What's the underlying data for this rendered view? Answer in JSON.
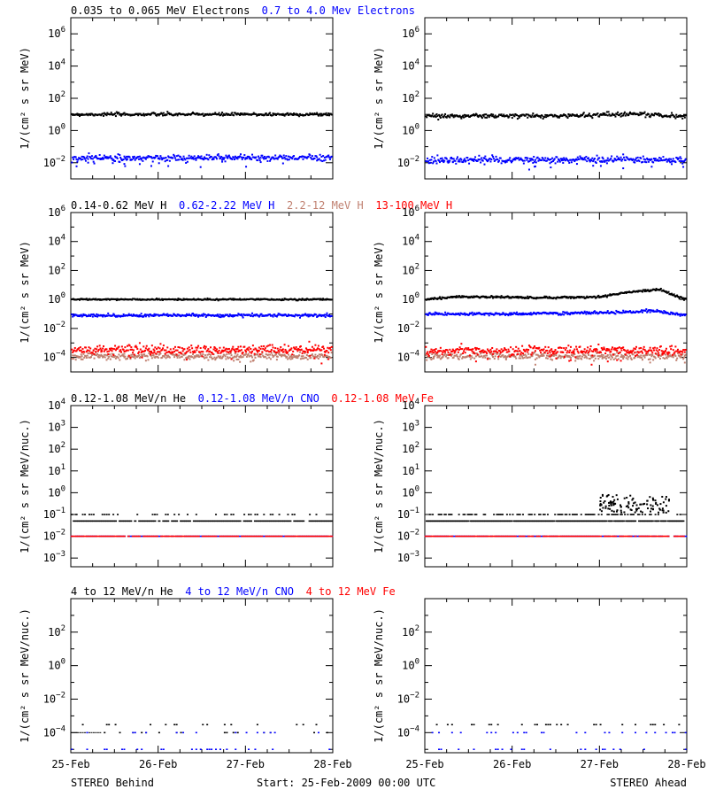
{
  "footer": {
    "left": "STEREO Behind",
    "center": "Start: 25-Feb-2009 00:00 UTC",
    "right": "STEREO Ahead"
  },
  "x_axis": {
    "ticks": [
      "25-Feb",
      "26-Feb",
      "27-Feb",
      "28-Feb"
    ],
    "range_days": [
      0,
      3
    ]
  },
  "colors": {
    "black": "#000000",
    "blue": "#0000ff",
    "brown": "#c08070",
    "red": "#ff0000"
  },
  "rows": [
    {
      "legend": [
        {
          "text": "0.035 to 0.065 MeV Electrons",
          "color": "black"
        },
        {
          "text": "0.7 to 4.0 Mev Electrons",
          "color": "blue"
        }
      ],
      "ylabel": "1/(cm² s sr MeV)",
      "ylim_log10": [
        -3,
        7
      ],
      "tick_exps": [
        -2,
        0,
        2,
        4,
        6
      ],
      "minor": true
    },
    {
      "legend": [
        {
          "text": "0.14-0.62 MeV H",
          "color": "black"
        },
        {
          "text": "0.62-2.22 MeV H",
          "color": "blue"
        },
        {
          "text": "2.2-12 MeV H",
          "color": "brown"
        },
        {
          "text": "13-100 MeV H",
          "color": "red"
        }
      ],
      "ylabel": "1/(cm² s sr MeV)",
      "ylim_log10": [
        -5,
        6
      ],
      "tick_exps": [
        -4,
        -2,
        0,
        2,
        4,
        6
      ],
      "minor": true
    },
    {
      "legend": [
        {
          "text": "0.12-1.08 MeV/n He",
          "color": "black"
        },
        {
          "text": "0.12-1.08 MeV/n CNO",
          "color": "blue"
        },
        {
          "text": "0.12-1.08 MeV Fe",
          "color": "red"
        }
      ],
      "ylabel": "1/(cm² s sr MeV/nuc.)",
      "ylim_log10": [
        -3.4,
        4
      ],
      "tick_exps": [
        -3,
        -2,
        -1,
        0,
        1,
        2,
        3,
        4
      ],
      "minor": false
    },
    {
      "legend": [
        {
          "text": "4 to 12 MeV/n He",
          "color": "black"
        },
        {
          "text": "4 to 12 MeV/n CNO",
          "color": "blue"
        },
        {
          "text": "4 to 12 MeV Fe",
          "color": "red"
        }
      ],
      "ylabel": "1/(cm² s sr MeV/nuc.)",
      "ylim_log10": [
        -5.2,
        4
      ],
      "tick_exps": [
        -4,
        -2,
        0,
        2
      ],
      "minor": true
    }
  ],
  "chart_data": [
    {
      "type": "scatter",
      "panel": "electrons-behind",
      "ylog": true,
      "ylim": [
        0.001,
        10000000
      ],
      "x_unit": "days since 25-Feb-2009",
      "series": [
        {
          "name": "0.035 to 0.065 MeV Electrons",
          "color": "black",
          "profile": [
            [
              0,
              10
            ],
            [
              1,
              10
            ],
            [
              2,
              10
            ],
            [
              3,
              10
            ]
          ],
          "scatter": 0.05
        },
        {
          "name": "0.7 to 4.0 Mev Electrons",
          "color": "blue",
          "profile": [
            [
              0,
              0.02
            ],
            [
              1,
              0.02
            ],
            [
              2,
              0.02
            ],
            [
              3,
              0.02
            ]
          ],
          "scatter": 0.1
        }
      ]
    },
    {
      "type": "scatter",
      "panel": "electrons-ahead",
      "ylog": true,
      "ylim": [
        0.001,
        10000000
      ],
      "x_unit": "days since 25-Feb-2009",
      "series": [
        {
          "name": "0.035 to 0.065 MeV Electrons",
          "color": "black",
          "profile": [
            [
              0,
              8
            ],
            [
              1.5,
              8
            ],
            [
              2.4,
              11
            ],
            [
              3,
              7
            ]
          ],
          "scatter": 0.07
        },
        {
          "name": "0.7 to 4.0 Mev Electrons",
          "color": "blue",
          "profile": [
            [
              0,
              0.015
            ],
            [
              1,
              0.015
            ],
            [
              2,
              0.015
            ],
            [
              3,
              0.015
            ]
          ],
          "scatter": 0.1
        }
      ]
    },
    {
      "type": "scatter",
      "panel": "protons-behind",
      "ylog": true,
      "ylim": [
        1e-05,
        1000000
      ],
      "x_unit": "days since 25-Feb-2009",
      "series": [
        {
          "name": "0.14-0.62 MeV H",
          "color": "black",
          "profile": [
            [
              0,
              1
            ],
            [
              1,
              1
            ],
            [
              2,
              1
            ],
            [
              3,
              1
            ]
          ],
          "scatter": 0.025
        },
        {
          "name": "0.62-2.22 MeV H",
          "color": "blue",
          "profile": [
            [
              0,
              0.08
            ],
            [
              1,
              0.08
            ],
            [
              2,
              0.08
            ],
            [
              3,
              0.08
            ]
          ],
          "scatter": 0.05
        },
        {
          "name": "2.2-12 MeV H",
          "color": "brown",
          "profile": [
            [
              0,
              0.00012
            ],
            [
              3,
              0.00012
            ]
          ],
          "scatter": 0.12
        },
        {
          "name": "13-100 MeV H",
          "color": "red",
          "profile": [
            [
              0,
              0.00035
            ],
            [
              3,
              0.00035
            ]
          ],
          "scatter": 0.16
        }
      ]
    },
    {
      "type": "scatter",
      "panel": "protons-ahead",
      "ylog": true,
      "ylim": [
        1e-05,
        1000000
      ],
      "x_unit": "days since 25-Feb-2009",
      "series": [
        {
          "name": "0.14-0.62 MeV H",
          "color": "black",
          "profile": [
            [
              0,
              1
            ],
            [
              0.4,
              1.6
            ],
            [
              1.4,
              1.3
            ],
            [
              2.0,
              1.5
            ],
            [
              2.3,
              3
            ],
            [
              2.7,
              5
            ],
            [
              2.85,
              2
            ],
            [
              3,
              1
            ]
          ],
          "scatter": 0.035
        },
        {
          "name": "0.62-2.22 MeV H",
          "color": "blue",
          "profile": [
            [
              0,
              0.1
            ],
            [
              1,
              0.1
            ],
            [
              2.3,
              0.13
            ],
            [
              2.6,
              0.16
            ],
            [
              3,
              0.08
            ]
          ],
          "scatter": 0.05
        },
        {
          "name": "2.2-12 MeV H",
          "color": "brown",
          "profile": [
            [
              0,
              0.00012
            ],
            [
              3,
              0.00012
            ]
          ],
          "scatter": 0.12
        },
        {
          "name": "13-100 MeV H",
          "color": "red",
          "profile": [
            [
              0,
              0.0003
            ],
            [
              3,
              0.0003
            ]
          ],
          "scatter": 0.16
        }
      ]
    },
    {
      "type": "scatter",
      "panel": "heavy-ions-low-behind",
      "ylog": true,
      "ylim": [
        0.0004,
        10000
      ],
      "x_unit": "days since 25-Feb-2009",
      "series": [
        {
          "name": "0.12-1.08 MeV/n He",
          "color": "black",
          "levels": [
            0.05,
            0.1
          ],
          "upper_fraction": 0.35,
          "sparse": true
        },
        {
          "name": "0.12-1.08 MeV/n CNO",
          "color": "blue",
          "levels": [
            0.01
          ],
          "sparse": true
        },
        {
          "name": "0.12-1.08 MeV Fe",
          "color": "red",
          "levels": [
            0.01
          ],
          "sparse": true
        }
      ]
    },
    {
      "type": "scatter",
      "panel": "heavy-ions-low-ahead",
      "ylog": true,
      "ylim": [
        0.0004,
        10000
      ],
      "x_unit": "days since 25-Feb-2009",
      "series": [
        {
          "name": "0.12-1.08 MeV/n He",
          "color": "black",
          "levels": [
            0.05,
            0.1
          ],
          "upper_fraction": 0.45,
          "burst": {
            "x": [
              2.0,
              2.8
            ],
            "ymax": 0.8
          }
        },
        {
          "name": "0.12-1.08 MeV/n CNO",
          "color": "blue",
          "levels": [
            0.01
          ],
          "sparse": true
        },
        {
          "name": "0.12-1.08 MeV Fe",
          "color": "red",
          "levels": [
            0.01
          ],
          "sparse": true
        }
      ]
    },
    {
      "type": "scatter",
      "panel": "heavy-ions-high-behind",
      "ylog": true,
      "ylim": [
        6.3e-06,
        10000
      ],
      "x_unit": "days since 25-Feb-2009",
      "series": [
        {
          "name": "4 to 12 MeV/n He",
          "color": "black",
          "levels": [
            0.0001,
            0.0003
          ],
          "sparse": true,
          "solid_until": 0.35
        },
        {
          "name": "4 to 12 MeV/n CNO",
          "color": "blue",
          "levels": [
            0.0001,
            1e-05
          ],
          "sparse": true
        },
        {
          "name": "4 to 12 MeV Fe",
          "color": "red",
          "levels": [],
          "sparse": true
        }
      ]
    },
    {
      "type": "scatter",
      "panel": "heavy-ions-high-ahead",
      "ylog": true,
      "ylim": [
        6.3e-06,
        10000
      ],
      "x_unit": "days since 25-Feb-2009",
      "series": [
        {
          "name": "4 to 12 MeV/n He",
          "color": "black",
          "levels": [
            0.0003
          ],
          "sparse": true
        },
        {
          "name": "4 to 12 MeV/n CNO",
          "color": "blue",
          "levels": [
            0.0001,
            1e-05
          ],
          "sparse": true
        },
        {
          "name": "4 to 12 MeV Fe",
          "color": "red",
          "levels": [],
          "sparse": true
        }
      ]
    }
  ]
}
